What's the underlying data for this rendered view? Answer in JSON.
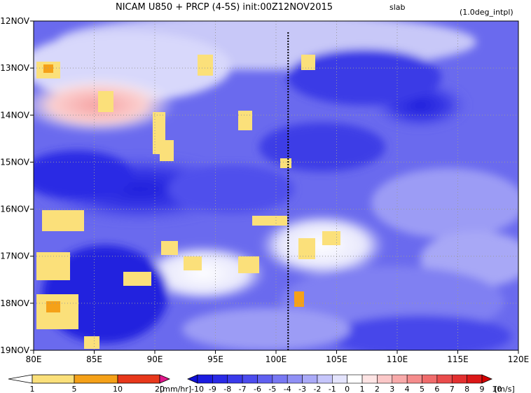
{
  "chart_data": {
    "type": "heatmap",
    "title": "NICAM   U850 + PRCP (4-5S) init:00Z12NOV2015",
    "title_tag": "slab",
    "subtitle": "(1.0deg_intpl)",
    "x_ticks": [
      "80E",
      "85E",
      "90E",
      "95E",
      "100E",
      "105E",
      "110E",
      "115E",
      "120E"
    ],
    "x_tick_values": [
      80,
      85,
      90,
      95,
      100,
      105,
      110,
      115,
      120
    ],
    "y_ticks": [
      "12NOV",
      "13NOV",
      "14NOV",
      "15NOV",
      "16NOV",
      "17NOV",
      "18NOV",
      "19NOV"
    ],
    "y_tick_values": [
      12,
      13,
      14,
      15,
      16,
      17,
      18,
      19
    ],
    "xlim": [
      80,
      120
    ],
    "ylim": [
      12,
      19
    ],
    "grid": true,
    "marker_line_x": 101,
    "precip_colorbar": {
      "labels": [
        "1",
        "5",
        "10",
        "20"
      ],
      "colors": [
        "#ffffff",
        "#fbe07a",
        "#f5a118",
        "#e8381b",
        "#e0168a"
      ],
      "unit": "[mm/hr]"
    },
    "wind_colorbar": {
      "labels": [
        "-10",
        "-9",
        "-8",
        "-7",
        "-6",
        "-5",
        "-4",
        "-3",
        "-2",
        "-1",
        "0",
        "1",
        "2",
        "3",
        "4",
        "5",
        "6",
        "7",
        "8",
        "9",
        "10"
      ],
      "colors": [
        "#1010d8",
        "#1c1ce0",
        "#2a2ae6",
        "#3a3aea",
        "#4c4cee",
        "#6060f0",
        "#7878f3",
        "#9090f5",
        "#aaaaf8",
        "#c6c6fb",
        "#e4e4fd",
        "#ffffff",
        "#fde4e4",
        "#fbc8c8",
        "#f8aaaa",
        "#f58c8c",
        "#f06c6c",
        "#ea4c4c",
        "#e33030",
        "#dc1818",
        "#d40000"
      ],
      "unit": "[m/s]"
    }
  }
}
